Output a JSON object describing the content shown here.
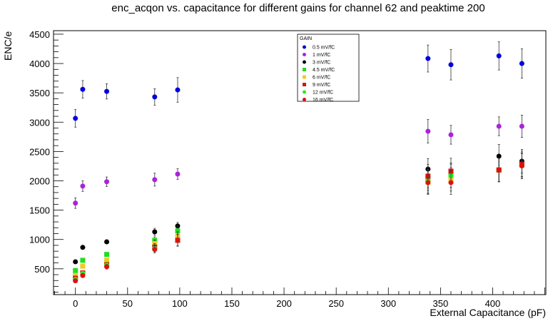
{
  "chart_data": {
    "type": "scatter",
    "title": "enc_acqon vs. capacitance for different gains for channel 62 and peaktime 200",
    "xlabel": "External Capacitance (pF)",
    "ylabel": "ENC/e",
    "xlim": [
      -21,
      451
    ],
    "ylim": [
      60,
      4560
    ],
    "xticks": [
      0,
      50,
      100,
      150,
      200,
      250,
      300,
      350,
      400
    ],
    "yticks": [
      500,
      1000,
      1500,
      2000,
      2500,
      3000,
      3500,
      4000,
      4500
    ],
    "legend": {
      "title": "GAIN",
      "placement": "top-center"
    },
    "x": [
      0,
      7,
      30,
      76,
      98,
      338,
      360,
      406,
      428
    ],
    "series": [
      {
        "name": "0.5 mV/fC",
        "color": "#0000dd",
        "marker": "circle",
        "values": [
          3065,
          3560,
          3525,
          3430,
          3550,
          4085,
          3980,
          4130,
          4000
        ],
        "errors": [
          150,
          150,
          130,
          140,
          210,
          230,
          260,
          240,
          250
        ]
      },
      {
        "name": "1 mV/fC",
        "color": "#aa22dd",
        "marker": "circle",
        "values": [
          1620,
          1910,
          1985,
          2020,
          2115,
          2845,
          2785,
          2930,
          2930
        ],
        "errors": [
          90,
          90,
          80,
          110,
          90,
          200,
          160,
          160,
          190
        ]
      },
      {
        "name": "3 mV/fC",
        "color": "#000000",
        "marker": "circle",
        "values": [
          620,
          865,
          960,
          1130,
          1230,
          2200,
          2155,
          2420,
          2335
        ],
        "errors": [
          20,
          20,
          20,
          60,
          60,
          180,
          150,
          200,
          200
        ]
      },
      {
        "name": "4.5 mV/fC",
        "color": "#22dd22",
        "marker": "square",
        "values": [
          470,
          645,
          745,
          985,
          1145,
          2035,
          2085,
          2185,
          2270
        ],
        "errors": [
          20,
          20,
          20,
          60,
          80,
          200,
          200,
          200,
          200
        ]
      },
      {
        "name": "6 mV/fC",
        "color": "#eecc22",
        "marker": "square",
        "values": [
          385,
          545,
          645,
          930,
          1050,
          1975,
          2025,
          2185,
          2270
        ],
        "errors": [
          20,
          20,
          20,
          60,
          80,
          200,
          200,
          200,
          200
        ]
      },
      {
        "name": "9 mV/fC",
        "color": "#dd1111",
        "marker": "square",
        "values": [
          340,
          430,
          570,
          870,
          985,
          2080,
          2165,
          2185,
          2285
        ],
        "errors": [
          20,
          20,
          40,
          60,
          100,
          200,
          220,
          200,
          220
        ]
      },
      {
        "name": "12 mV/fC",
        "color": "#22ee22",
        "marker": "circle",
        "values": [
          320,
          420,
          565,
          850,
          990,
          1990,
          2085,
          2185,
          2255
        ],
        "errors": [
          20,
          20,
          40,
          60,
          100,
          200,
          200,
          200,
          220
        ]
      },
      {
        "name": "16 mV/fC",
        "color": "#dd1111",
        "marker": "circle",
        "values": [
          295,
          385,
          535,
          830,
          990,
          1970,
          1970,
          2185,
          2255
        ],
        "errors": [
          20,
          20,
          40,
          60,
          100,
          200,
          200,
          200,
          220
        ]
      }
    ]
  }
}
